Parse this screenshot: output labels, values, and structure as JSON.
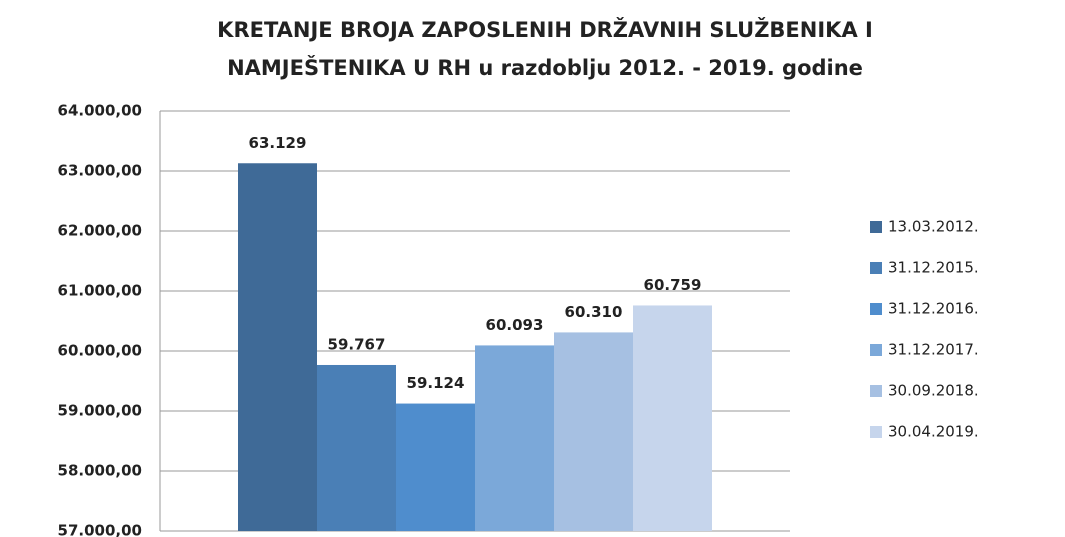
{
  "chart_data": {
    "type": "bar",
    "title": [
      "KRETANJE BROJA ZAPOSLENIH DRŽAVNIH SLUŽBENIKA I",
      "NAMJEŠTENIKA U RH u razdoblju 2012. - 2019. godine"
    ],
    "categories": [
      null
    ],
    "series": [
      {
        "name": "13.03.2012.",
        "color": "#3f6a97",
        "values": [
          63129
        ],
        "value_labels": [
          "63.129"
        ]
      },
      {
        "name": "31.12.2015.",
        "color": "#4a7fb6",
        "values": [
          59767
        ],
        "value_labels": [
          "59.767"
        ]
      },
      {
        "name": "31.12.2016.",
        "color": "#4f8dcd",
        "values": [
          59124
        ],
        "value_labels": [
          "59.124"
        ]
      },
      {
        "name": "31.12.2017.",
        "color": "#7ba8d9",
        "values": [
          60093
        ],
        "value_labels": [
          "60.093"
        ]
      },
      {
        "name": "30.09.2018.",
        "color": "#a6c0e2",
        "values": [
          60310
        ],
        "value_labels": [
          "60.310"
        ]
      },
      {
        "name": "30.04.2019.",
        "color": "#c6d5ec",
        "values": [
          60759
        ],
        "value_labels": [
          "60.759"
        ]
      }
    ],
    "ylim": [
      57000,
      64000
    ],
    "yticks": [
      {
        "value": 57000,
        "label": "57.000,00"
      },
      {
        "value": 58000,
        "label": "58.000,00"
      },
      {
        "value": 59000,
        "label": "59.000,00"
      },
      {
        "value": 60000,
        "label": "60.000,00"
      },
      {
        "value": 61000,
        "label": "61.000,00"
      },
      {
        "value": 62000,
        "label": "62.000,00"
      },
      {
        "value": 63000,
        "label": "63.000,00"
      },
      {
        "value": 64000,
        "label": "64.000,00"
      }
    ],
    "grid": true,
    "legend": "right"
  }
}
